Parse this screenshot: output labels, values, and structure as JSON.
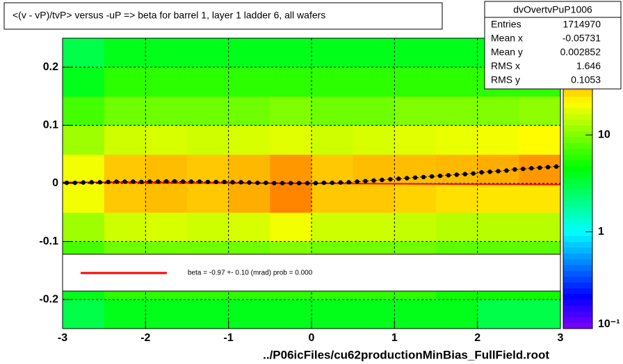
{
  "chart_data": {
    "type": "heatmap",
    "title": "<(v - vP)/tvP> versus  -uP => beta for barrel 1, layer 1 ladder 6, all wafers",
    "xlabel": "../P06icFiles/cu62productionMinBias_FullField.root",
    "xlim": [
      -3,
      3
    ],
    "ylim": [
      -0.25,
      0.25
    ],
    "xticks": [
      -3,
      -2,
      -1,
      0,
      1,
      2,
      3
    ],
    "yticks": [
      -0.2,
      -0.1,
      0,
      0.1,
      0.2
    ],
    "grid": true,
    "zlim": [
      0.1,
      100
    ],
    "zticks": [
      {
        "value": 0.1,
        "label": "10⁻¹"
      },
      1,
      10
    ],
    "log_z": true,
    "xbins": [
      -3,
      -2.5,
      -2,
      -1.5,
      -1,
      -0.5,
      0,
      0.5,
      1,
      1.5,
      2,
      2.5,
      3
    ],
    "ybins": [
      -0.25,
      -0.2,
      -0.15,
      -0.1,
      -0.05,
      0,
      0.05,
      0.1,
      0.15,
      0.2,
      0.25
    ],
    "z": [
      [
        3,
        4,
        4,
        4,
        4,
        4,
        4,
        4,
        4,
        4,
        3,
        3
      ],
      [
        4,
        6,
        6,
        6,
        6,
        6,
        6,
        6,
        6,
        5,
        5,
        5
      ],
      [
        7,
        9,
        9,
        9,
        9,
        10,
        9,
        9,
        9,
        8,
        8,
        8
      ],
      [
        12,
        16,
        17,
        16,
        17,
        20,
        16,
        16,
        15,
        14,
        14,
        14
      ],
      [
        20,
        30,
        32,
        30,
        35,
        45,
        30,
        30,
        28,
        26,
        25,
        25
      ],
      [
        20,
        30,
        32,
        30,
        33,
        40,
        30,
        32,
        32,
        33,
        35,
        40
      ],
      [
        12,
        16,
        17,
        16,
        17,
        18,
        16,
        17,
        18,
        19,
        20,
        22
      ],
      [
        7,
        9,
        9,
        9,
        9,
        10,
        9,
        9,
        10,
        10,
        10,
        11
      ],
      [
        4,
        6,
        6,
        6,
        6,
        6,
        6,
        6,
        6,
        6,
        6,
        6
      ],
      [
        3,
        4,
        4,
        4,
        4,
        4,
        4,
        4,
        4,
        4,
        4,
        4
      ]
    ],
    "profile": {
      "color": "#000000",
      "x": [
        -2.95,
        -2.85,
        -2.75,
        -2.65,
        -2.55,
        -2.45,
        -2.35,
        -2.25,
        -2.15,
        -2.05,
        -1.95,
        -1.85,
        -1.75,
        -1.65,
        -1.55,
        -1.45,
        -1.35,
        -1.25,
        -1.15,
        -1.05,
        -0.95,
        -0.85,
        -0.75,
        -0.65,
        -0.55,
        -0.45,
        -0.35,
        -0.25,
        -0.15,
        -0.05,
        0.05,
        0.15,
        0.25,
        0.35,
        0.45,
        0.55,
        0.65,
        0.75,
        0.85,
        0.95,
        1.05,
        1.15,
        1.25,
        1.35,
        1.45,
        1.55,
        1.65,
        1.75,
        1.85,
        1.95,
        2.05,
        2.15,
        2.25,
        2.35,
        2.45,
        2.55,
        2.65,
        2.75,
        2.85,
        2.95
      ],
      "values": [
        0.001,
        0.001,
        0.0015,
        0.002,
        0.002,
        0.0025,
        0.003,
        0.003,
        0.003,
        0.0025,
        0.003,
        0.003,
        0.0035,
        0.0035,
        0.003,
        0.003,
        0.003,
        0.0025,
        0.0025,
        0.0025,
        0.002,
        0.002,
        0.0015,
        0.001,
        0.001,
        0.0005,
        0.0005,
        0.0005,
        0.0005,
        0.0005,
        0.0005,
        0.001,
        0.001,
        0.0015,
        0.002,
        0.003,
        0.004,
        0.005,
        0.006,
        0.007,
        0.008,
        0.009,
        0.01,
        0.011,
        0.012,
        0.013,
        0.014,
        0.015,
        0.016,
        0.017,
        0.019,
        0.02,
        0.021,
        0.022,
        0.024,
        0.025,
        0.026,
        0.027,
        0.028,
        0.029
      ]
    },
    "fit": {
      "color": "#ff0000",
      "x": [
        -3,
        3
      ],
      "values": [
        0.002,
        -0.002
      ],
      "label": "beta =   -0.97 +-  0.10 (mrad) prob = 0.000"
    },
    "stats": {
      "title": "dvOvertvPuP1006",
      "rows": [
        [
          "Entries",
          "1714970"
        ],
        [
          "Mean x",
          "-0.05731"
        ],
        [
          "Mean y",
          "0.002852"
        ],
        [
          "RMS x",
          "1.646"
        ],
        [
          "RMS y",
          "0.1053"
        ]
      ]
    }
  }
}
